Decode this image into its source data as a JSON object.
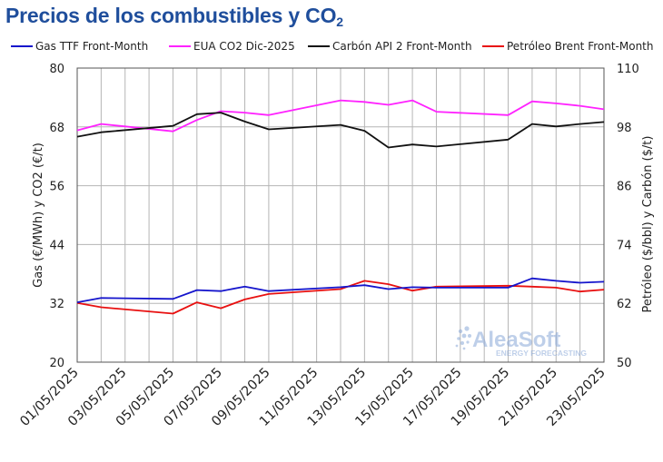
{
  "title_main": "Precios de los combustibles y CO",
  "title_sub": "2",
  "watermark": {
    "name": "AleaSoft",
    "tagline": "ENERGY FORECASTING"
  },
  "chart_data": {
    "type": "line",
    "x": [
      "01/05/2025",
      "02/05/2025",
      "05/05/2025",
      "06/05/2025",
      "07/05/2025",
      "08/05/2025",
      "09/05/2025",
      "12/05/2025",
      "13/05/2025",
      "14/05/2025",
      "15/05/2025",
      "16/05/2025",
      "19/05/2025",
      "20/05/2025",
      "21/05/2025",
      "22/05/2025",
      "23/05/2025"
    ],
    "x_all": [
      "01/05/2025",
      "02/05/2025",
      "03/05/2025",
      "04/05/2025",
      "05/05/2025",
      "06/05/2025",
      "07/05/2025",
      "08/05/2025",
      "09/05/2025",
      "10/05/2025",
      "11/05/2025",
      "12/05/2025",
      "13/05/2025",
      "14/05/2025",
      "15/05/2025",
      "16/05/2025",
      "17/05/2025",
      "18/05/2025",
      "19/05/2025",
      "20/05/2025",
      "21/05/2025",
      "22/05/2025",
      "23/05/2025"
    ],
    "x_tick_labels": [
      "01/05/2025",
      "03/05/2025",
      "05/05/2025",
      "07/05/2025",
      "09/05/2025",
      "11/05/2025",
      "13/05/2025",
      "15/05/2025",
      "17/05/2025",
      "19/05/2025",
      "21/05/2025",
      "23/05/2025"
    ],
    "y_left": {
      "label": "Gas (€/MWh) y CO2 (€/t)",
      "min": 20,
      "max": 80,
      "ticks": [
        20,
        32,
        44,
        56,
        68,
        80
      ]
    },
    "y_right": {
      "label": "Petróleo ($/bbl) y Carbón ($/t)",
      "min": 50,
      "max": 110,
      "ticks": [
        50,
        62,
        74,
        86,
        98,
        110
      ]
    },
    "grid": true,
    "legend_position": "top",
    "series": [
      {
        "name": "Gas TTF Front-Month",
        "axis": "left",
        "color": "#1515cc",
        "points": [
          [
            "01/05/2025",
            32.2
          ],
          [
            "02/05/2025",
            33.1
          ],
          [
            "05/05/2025",
            32.9
          ],
          [
            "06/05/2025",
            34.7
          ],
          [
            "07/05/2025",
            34.5
          ],
          [
            "08/05/2025",
            35.4
          ],
          [
            "09/05/2025",
            34.5
          ],
          [
            "12/05/2025",
            35.3
          ],
          [
            "13/05/2025",
            35.7
          ],
          [
            "14/05/2025",
            34.9
          ],
          [
            "15/05/2025",
            35.3
          ],
          [
            "16/05/2025",
            35.2
          ],
          [
            "19/05/2025",
            35.2
          ],
          [
            "20/05/2025",
            37.1
          ],
          [
            "21/05/2025",
            36.6
          ],
          [
            "22/05/2025",
            36.2
          ],
          [
            "23/05/2025",
            36.4
          ]
        ]
      },
      {
        "name": "EUA CO2 Dic-2025",
        "axis": "left",
        "color": "#ff22ff",
        "points": [
          [
            "01/05/2025",
            67.3
          ],
          [
            "02/05/2025",
            68.6
          ],
          [
            "05/05/2025",
            67.1
          ],
          [
            "06/05/2025",
            69.4
          ],
          [
            "07/05/2025",
            71.2
          ],
          [
            "08/05/2025",
            70.9
          ],
          [
            "09/05/2025",
            70.4
          ],
          [
            "12/05/2025",
            73.4
          ],
          [
            "13/05/2025",
            73.1
          ],
          [
            "14/05/2025",
            72.5
          ],
          [
            "15/05/2025",
            73.4
          ],
          [
            "16/05/2025",
            71.1
          ],
          [
            "19/05/2025",
            70.4
          ],
          [
            "20/05/2025",
            73.2
          ],
          [
            "21/05/2025",
            72.8
          ],
          [
            "22/05/2025",
            72.3
          ],
          [
            "23/05/2025",
            71.6
          ]
        ]
      },
      {
        "name": "Carbón API 2 Front-Month",
        "axis": "right",
        "color": "#111111",
        "points": [
          [
            "01/05/2025",
            96.0
          ],
          [
            "02/05/2025",
            96.9
          ],
          [
            "05/05/2025",
            98.2
          ],
          [
            "06/05/2025",
            100.6
          ],
          [
            "07/05/2025",
            100.9
          ],
          [
            "08/05/2025",
            99.1
          ],
          [
            "09/05/2025",
            97.5
          ],
          [
            "12/05/2025",
            98.4
          ],
          [
            "13/05/2025",
            97.2
          ],
          [
            "14/05/2025",
            93.8
          ],
          [
            "15/05/2025",
            94.4
          ],
          [
            "16/05/2025",
            94.0
          ],
          [
            "19/05/2025",
            95.4
          ],
          [
            "20/05/2025",
            98.6
          ],
          [
            "21/05/2025",
            98.1
          ],
          [
            "22/05/2025",
            98.6
          ],
          [
            "23/05/2025",
            99.0
          ]
        ]
      },
      {
        "name": "Petróleo Brent Front-Month",
        "axis": "right",
        "color": "#e81010",
        "points": [
          [
            "01/05/2025",
            62.1
          ],
          [
            "02/05/2025",
            61.2
          ],
          [
            "05/05/2025",
            59.9
          ],
          [
            "06/05/2025",
            62.2
          ],
          [
            "07/05/2025",
            61.0
          ],
          [
            "08/05/2025",
            62.8
          ],
          [
            "09/05/2025",
            63.9
          ],
          [
            "12/05/2025",
            64.9
          ],
          [
            "13/05/2025",
            66.6
          ],
          [
            "14/05/2025",
            65.9
          ],
          [
            "15/05/2025",
            64.6
          ],
          [
            "16/05/2025",
            65.4
          ],
          [
            "19/05/2025",
            65.6
          ],
          [
            "20/05/2025",
            65.4
          ],
          [
            "21/05/2025",
            65.2
          ],
          [
            "22/05/2025",
            64.4
          ],
          [
            "23/05/2025",
            64.8
          ]
        ]
      }
    ]
  }
}
